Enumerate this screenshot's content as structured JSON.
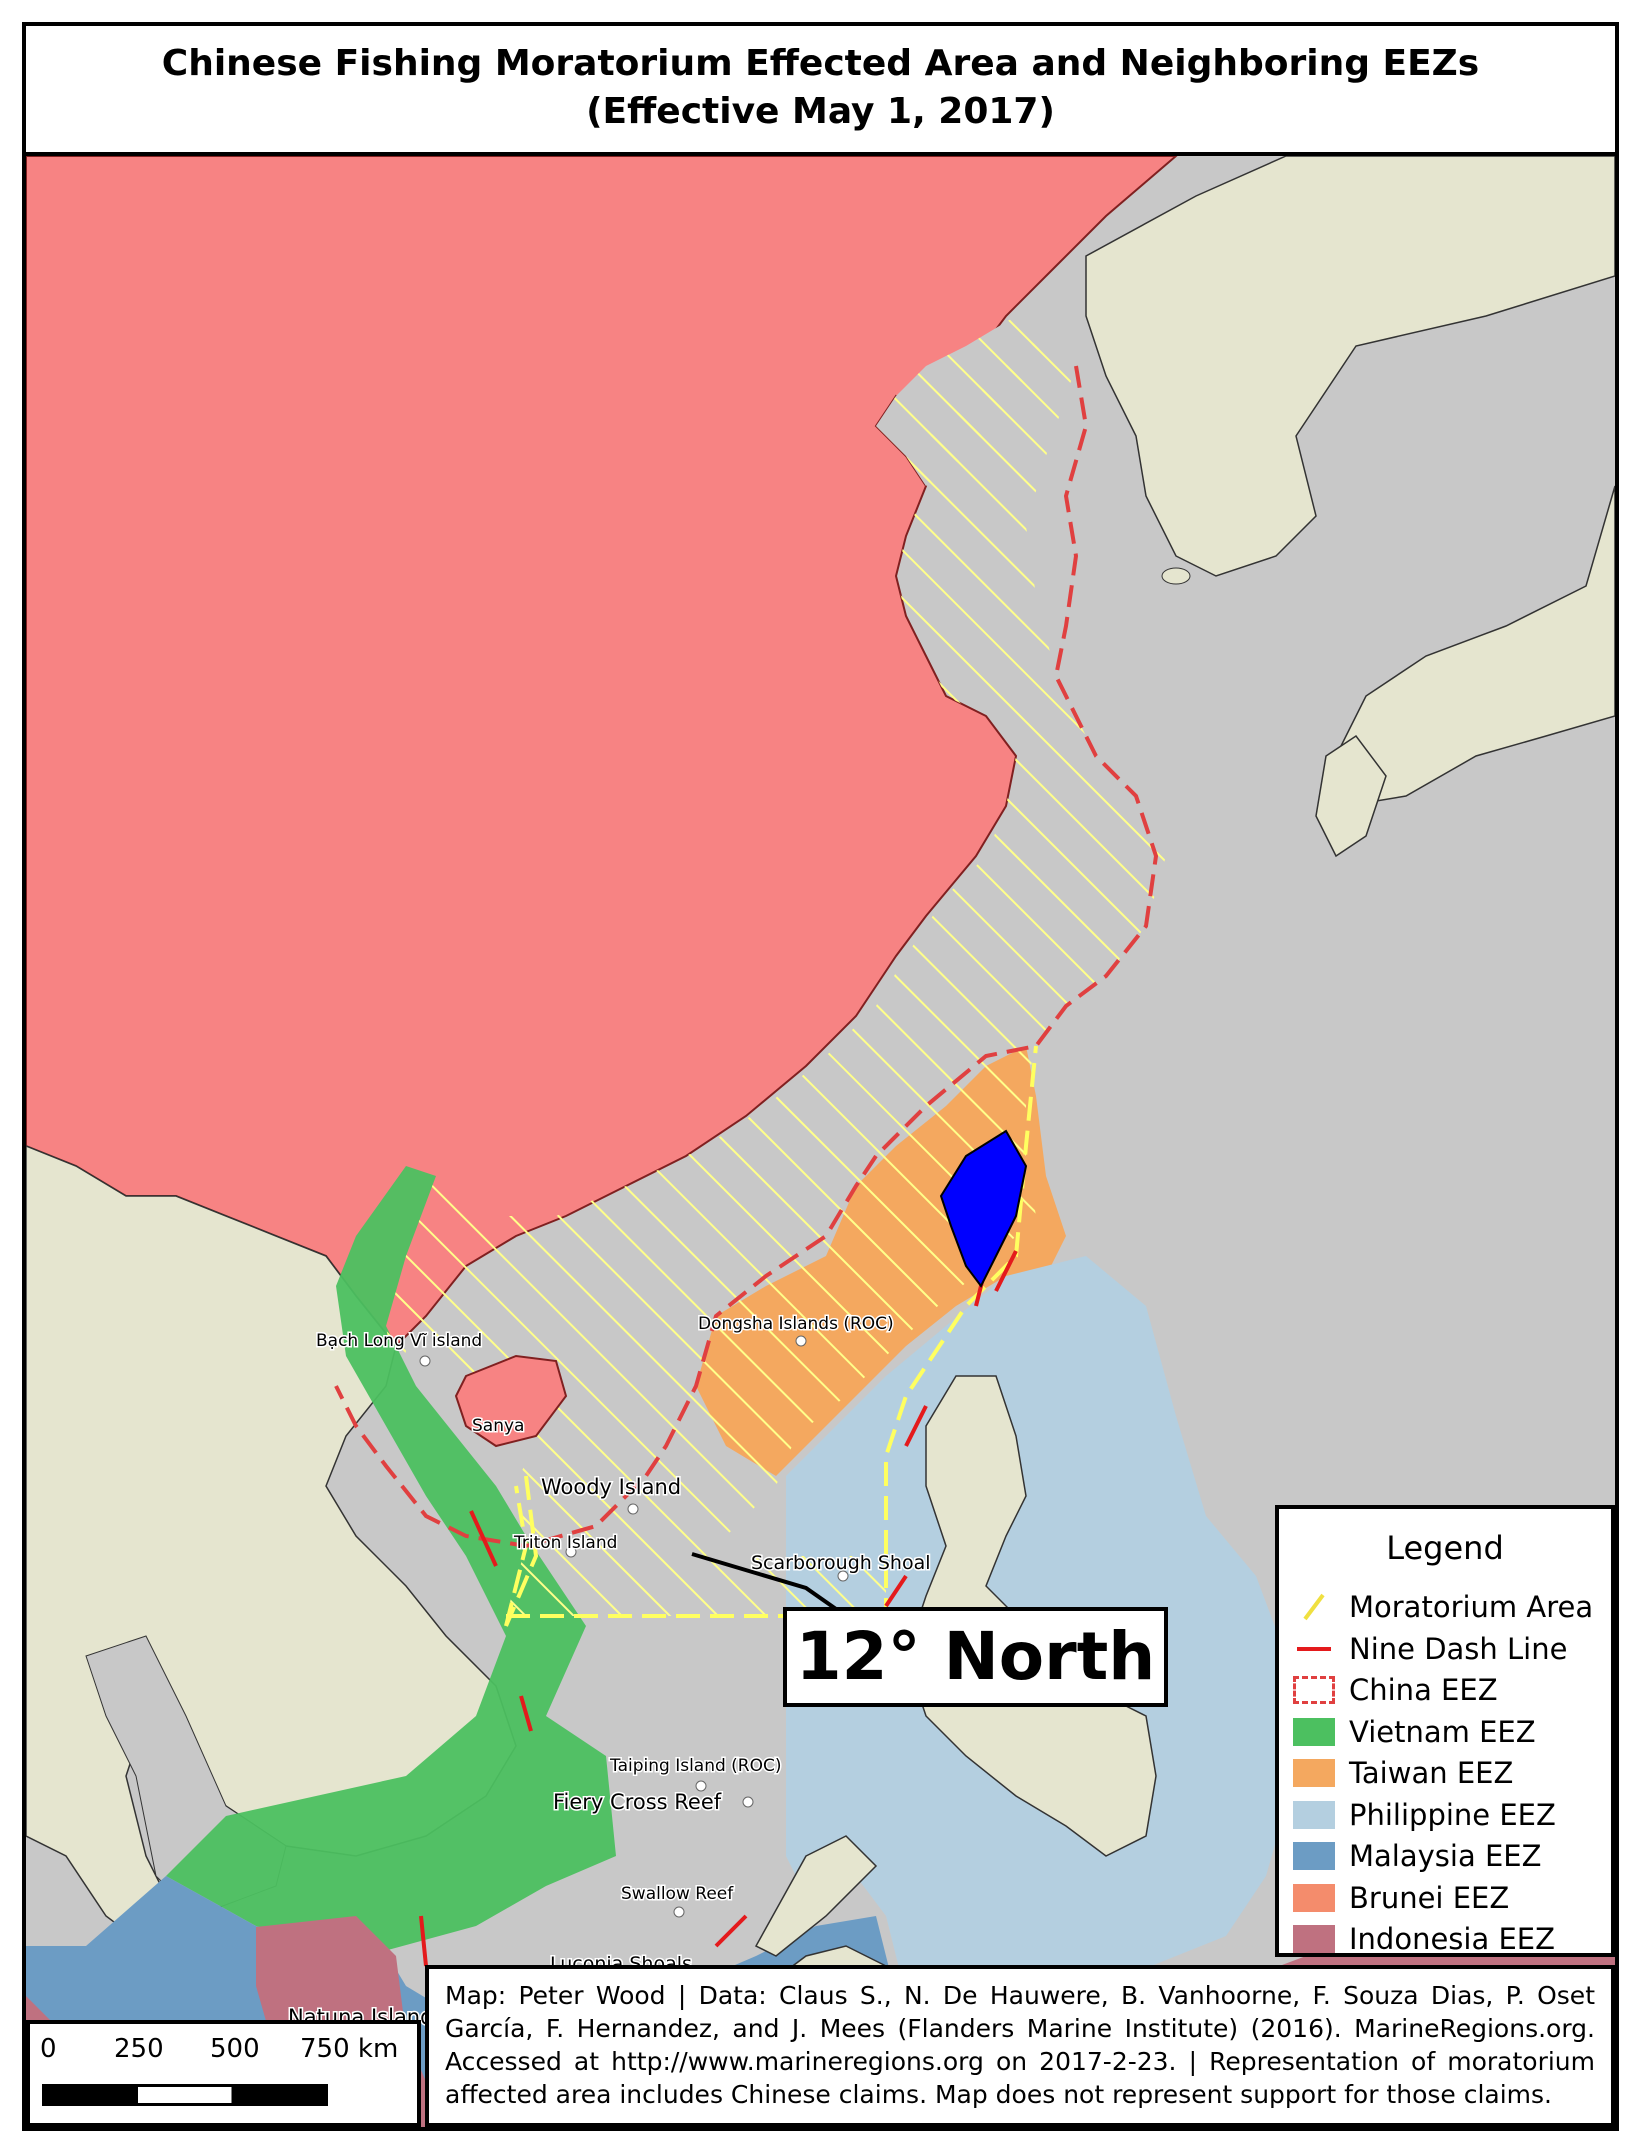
{
  "title": {
    "line1": "Chinese Fishing Moratorium Effected Area and Neighboring EEZs",
    "line2": "(Effective May 1, 2017)"
  },
  "colors": {
    "sea": "#c8c8c8",
    "china": "#f78383",
    "land": "#e5e5cf",
    "moratorium": "#ffff8a",
    "nine_dash": "#e41a1c",
    "china_eez": "#e04040",
    "vietnam": "#4cc060",
    "taiwan": "#f4a85f",
    "taiwan_island": "#0000ff",
    "philippine": "#b4cfe0",
    "malaysia": "#6c9cc4",
    "brunei": "#f48c6c",
    "indonesia": "#bf7180"
  },
  "places": {
    "bach_long_vi": "Bạch Long Vĩ island",
    "dongsha": "Dongsha Islands (ROC)",
    "sanya": "Sanya",
    "woody": "Woody Island",
    "triton": "Triton Island",
    "scarborough": "Scarborough Shoal",
    "taiping": "Taiping Island (ROC)",
    "fiery_cross": "Fiery Cross Reef",
    "swallow": "Swallow Reef",
    "luconia": "Luconia Shoals",
    "natuna": "Natuna Islands"
  },
  "callout": "12° North",
  "legend": {
    "title": "Legend",
    "items": [
      {
        "label": "Moratorium Area",
        "symbol": "hatch",
        "color": "#ffff8a"
      },
      {
        "label": "Nine Dash Line",
        "symbol": "line",
        "color": "#e41a1c"
      },
      {
        "label": "China EEZ",
        "symbol": "dashed-box",
        "color": "#e04040"
      },
      {
        "label": "Vietnam EEZ",
        "symbol": "fill",
        "color": "#4cc060"
      },
      {
        "label": "Taiwan EEZ",
        "symbol": "fill",
        "color": "#f4a85f"
      },
      {
        "label": "Philippine EEZ",
        "symbol": "fill",
        "color": "#b4cfe0"
      },
      {
        "label": "Malaysia EEZ",
        "symbol": "fill",
        "color": "#6c9cc4"
      },
      {
        "label": "Brunei EEZ",
        "symbol": "fill",
        "color": "#f48c6c"
      },
      {
        "label": "Indonesia EEZ",
        "symbol": "fill",
        "color": "#bf7180"
      }
    ]
  },
  "credit": "Map: Peter Wood | Data: Claus S., N. De Hauwere, B. Vanhoorne, F. Souza Dias, P. Oset García, F. Hernandez, and J. Mees (Flanders Marine Institute) (2016). MarineRegions.org. Accessed at http://www.marineregions.org on 2017-2-23. | Representation of moratorium affected area includes Chinese claims. Map does not represent support for those claims.",
  "scale": {
    "ticks": [
      "0",
      "250",
      "500",
      "750 km"
    ]
  }
}
